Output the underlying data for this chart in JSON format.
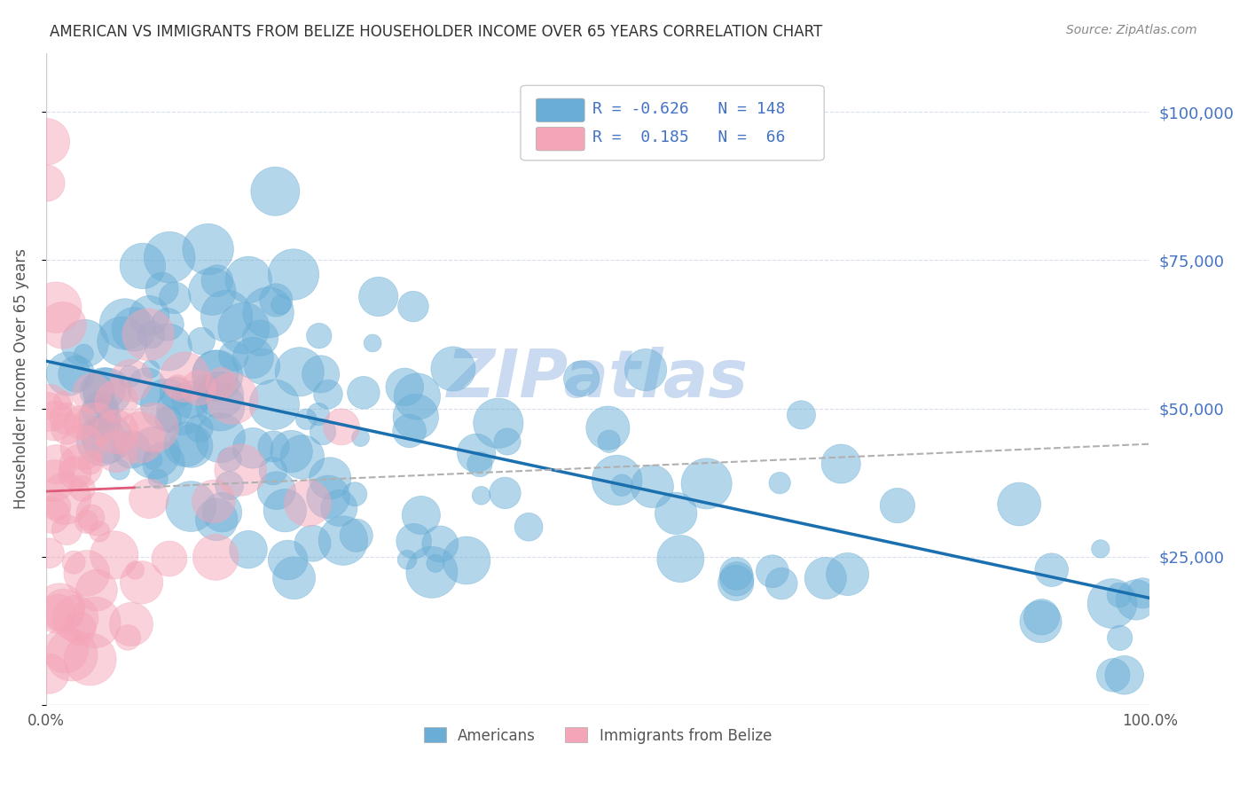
{
  "title": "AMERICAN VS IMMIGRANTS FROM BELIZE HOUSEHOLDER INCOME OVER 65 YEARS CORRELATION CHART",
  "source": "Source: ZipAtlas.com",
  "xlabel": "",
  "ylabel": "Householder Income Over 65 years",
  "xlim": [
    0,
    1.0
  ],
  "ylim": [
    0,
    110000
  ],
  "yticks": [
    0,
    25000,
    50000,
    75000,
    100000
  ],
  "ytick_labels": [
    "",
    "$25,000",
    "$50,000",
    "$75,000",
    "$100,000"
  ],
  "blue_R": -0.626,
  "blue_N": 148,
  "pink_R": 0.185,
  "pink_N": 66,
  "blue_color": "#6aaed6",
  "pink_color": "#f4a6b8",
  "blue_line_color": "#1a6faf",
  "pink_line_color": "#e05a7a",
  "watermark": "ZIPatlas",
  "watermark_color": "#c8d8f0",
  "legend_label_blue": "Americans",
  "legend_label_pink": "Immigrants from Belize",
  "blue_intercept": 58000,
  "blue_slope": -40000,
  "pink_intercept": 36000,
  "pink_slope": 8000
}
